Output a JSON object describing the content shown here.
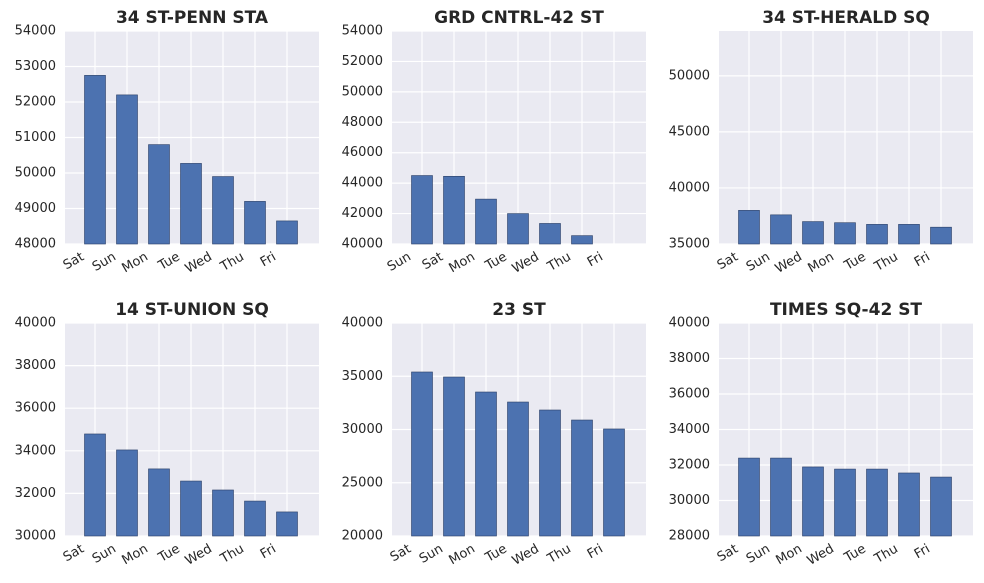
{
  "chart_data": [
    {
      "type": "bar",
      "title": "34 ST-PENN STA",
      "categories": [
        "Sat",
        "Sun",
        "Mon",
        "Tue",
        "Wed",
        "Thu",
        "Fri"
      ],
      "values": [
        52750,
        52200,
        50800,
        50270,
        49900,
        49200,
        48650
      ],
      "color": "#4c72b0",
      "ylim": [
        48000,
        54000
      ],
      "yticks": [
        48000,
        49000,
        50000,
        51000,
        52000,
        53000,
        54000
      ],
      "grid": true
    },
    {
      "type": "bar",
      "title": "GRD CNTRL-42 ST",
      "categories": [
        "Sun",
        "Sat",
        "Mon",
        "Tue",
        "Wed",
        "Thu",
        "Fri"
      ],
      "values": [
        44500,
        44450,
        42950,
        42000,
        41350,
        40550,
        null
      ],
      "color": "#4c72b0",
      "ylim": [
        40000,
        54000
      ],
      "yticks": [
        40000,
        42000,
        44000,
        46000,
        48000,
        50000,
        52000,
        54000
      ],
      "grid": true
    },
    {
      "type": "bar",
      "title": "34 ST-HERALD SQ",
      "categories": [
        "Sat",
        "Sun",
        "Wed",
        "Mon",
        "Tue",
        "Thu",
        "Fri"
      ],
      "values": [
        38000,
        37600,
        37000,
        36900,
        36750,
        36750,
        36500
      ],
      "color": "#4c72b0",
      "ylim": [
        35000,
        54000
      ],
      "yticks": [
        35000,
        40000,
        45000,
        50000
      ],
      "grid": true
    },
    {
      "type": "bar",
      "title": "14 ST-UNION SQ",
      "categories": [
        "Sat",
        "Sun",
        "Mon",
        "Tue",
        "Wed",
        "Thu",
        "Fri"
      ],
      "values": [
        34790,
        34040,
        33150,
        32580,
        32160,
        31640,
        31130
      ],
      "color": "#4c72b0",
      "ylim": [
        30000,
        40000
      ],
      "yticks": [
        30000,
        32000,
        34000,
        36000,
        38000,
        40000
      ],
      "grid": true
    },
    {
      "type": "bar",
      "title": "23 ST",
      "categories": [
        "Sat",
        "Sun",
        "Mon",
        "Tue",
        "Wed",
        "Thu",
        "Fri"
      ],
      "values": [
        35400,
        34930,
        33520,
        32580,
        31830,
        30890,
        30050
      ],
      "color": "#4c72b0",
      "ylim": [
        20000,
        40000
      ],
      "yticks": [
        20000,
        25000,
        30000,
        35000,
        40000
      ],
      "grid": true
    },
    {
      "type": "bar",
      "title": "TIMES SQ-42 ST",
      "categories": [
        "Sat",
        "Sun",
        "Mon",
        "Wed",
        "Tue",
        "Thu",
        "Fri"
      ],
      "values": [
        32390,
        32390,
        31890,
        31770,
        31770,
        31550,
        31320
      ],
      "color": "#4c72b0",
      "ylim": [
        28000,
        40000
      ],
      "yticks": [
        28000,
        30000,
        32000,
        34000,
        36000,
        38000,
        40000
      ],
      "grid": true
    }
  ]
}
